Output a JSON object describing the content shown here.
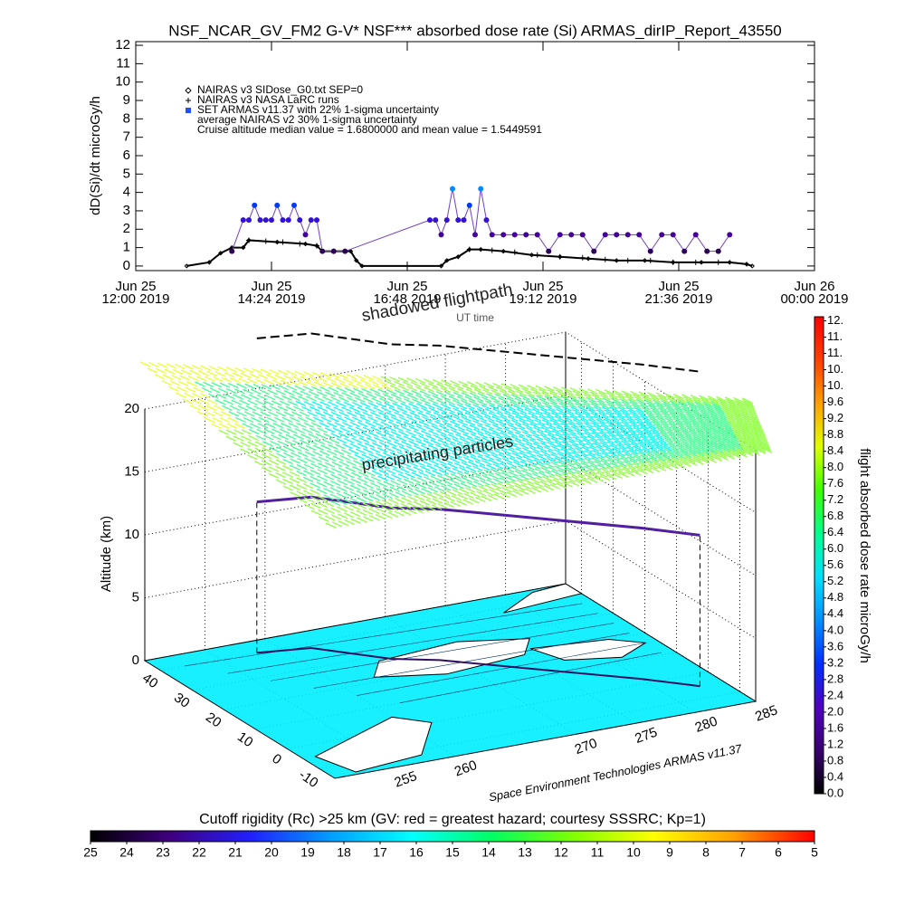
{
  "chart_data": [
    {
      "type": "line",
      "title": "NSF_NCAR_GV_FM2 G-V* NSF*** absorbed dose rate (Si) ARMAS_dirIP_Report_43550",
      "xlabel": "UT time",
      "ylabel": "dD(Si)/dt microGy/h",
      "xlim": [
        12,
        24
      ],
      "xticks": [
        {
          "value": 12,
          "label": "Jun 25\n12:00 2019"
        },
        {
          "value": 14.4,
          "label": "Jun 25\n14:24 2019"
        },
        {
          "value": 16.8,
          "label": "Jun 25\n16:48 2019"
        },
        {
          "value": 19.2,
          "label": "Jun 25\n19:12 2019"
        },
        {
          "value": 21.6,
          "label": "Jun 25\n21:36 2019"
        },
        {
          "value": 24,
          "label": "Jun 26\n00:00 2019"
        }
      ],
      "ylim": [
        -0.25,
        12.2
      ],
      "yticks": [
        0,
        1,
        2,
        3,
        4,
        5,
        6,
        7,
        8,
        9,
        10,
        11,
        12
      ],
      "series": [
        {
          "name": "NAIRAS v3 SIDose_G0.txt SEP=0",
          "color": "#000000",
          "marker": "diamond",
          "x": [
            12.9,
            13.3,
            13.5,
            13.7,
            13.9,
            14.0,
            14.5,
            15.0,
            15.2,
            15.3,
            15.8,
            15.9,
            16.0,
            17.4,
            17.5,
            17.7,
            17.9,
            18.1,
            18.5,
            19.0,
            19.5,
            20.0,
            20.5,
            21.0,
            21.5,
            22.0,
            22.5,
            22.8,
            22.9
          ],
          "values": [
            0,
            0.2,
            0.7,
            1.0,
            1.0,
            1.4,
            1.3,
            1.2,
            1.1,
            0.8,
            0.8,
            0.3,
            0,
            0,
            0.3,
            0.5,
            0.9,
            0.9,
            0.8,
            0.6,
            0.5,
            0.4,
            0.3,
            0.3,
            0.2,
            0.2,
            0.2,
            0.1,
            0
          ]
        },
        {
          "name": "NAIRAS v3 NASA LaRC runs",
          "color": "#000000",
          "marker": "plus",
          "x": [
            14.0,
            14.3,
            14.6,
            14.9,
            15.2,
            15.5,
            17.9,
            18.3,
            18.7,
            19.1,
            19.5,
            19.9,
            20.3,
            20.7,
            21.1,
            21.5,
            21.9,
            22.3
          ],
          "values": [
            1.4,
            1.35,
            1.3,
            1.2,
            1.1,
            0.8,
            0.9,
            0.85,
            0.75,
            0.6,
            0.5,
            0.45,
            0.35,
            0.3,
            0.3,
            0.2,
            0.2,
            0.2
          ]
        },
        {
          "name": "SET ARMAS v11.37 with 22% 1-sigma uncertainty",
          "color": "#2050ff",
          "marker": "circle",
          "x": [
            13.7,
            13.9,
            14.0,
            14.1,
            14.2,
            14.3,
            14.4,
            14.5,
            14.6,
            14.7,
            14.8,
            14.9,
            15.0,
            15.1,
            15.2,
            15.3,
            15.5,
            15.7,
            17.2,
            17.3,
            17.4,
            17.5,
            17.6,
            17.7,
            17.8,
            17.9,
            18.0,
            18.1,
            18.2,
            18.3,
            18.5,
            18.7,
            18.9,
            19.1,
            19.3,
            19.5,
            19.7,
            19.9,
            20.1,
            20.3,
            20.5,
            20.7,
            20.9,
            21.1,
            21.3,
            21.5,
            21.7,
            21.9,
            22.1,
            22.3,
            22.5
          ],
          "values": [
            0.8,
            2.5,
            2.5,
            3.3,
            2.5,
            2.5,
            2.5,
            3.3,
            2.5,
            2.5,
            3.3,
            2.5,
            1.7,
            2.5,
            2.5,
            0.8,
            0.8,
            0.8,
            2.5,
            2.5,
            1.7,
            2.5,
            4.2,
            2.5,
            2.5,
            3.3,
            1.7,
            4.2,
            2.5,
            1.7,
            1.7,
            1.7,
            1.7,
            1.7,
            0.8,
            1.7,
            1.7,
            1.7,
            0.8,
            1.7,
            1.7,
            1.7,
            1.7,
            0.8,
            1.7,
            1.7,
            0.8,
            1.7,
            0.8,
            0.8,
            1.7
          ]
        }
      ],
      "annotations": [
        "average NAIRAS v2 30% 1-sigma uncertainty",
        "Cruise altitude median value = 1.6800000 and mean value = 1.5449591"
      ]
    },
    {
      "type": "3d",
      "zlabel": "Altitude (km)",
      "zlim": [
        0,
        25
      ],
      "zticks": [
        0,
        5,
        10,
        15,
        20
      ],
      "xlim": [
        45,
        -15
      ],
      "xticks": [
        40,
        30,
        20,
        10,
        0,
        -10
      ],
      "ylim": [
        250,
        285
      ],
      "yticks": [
        255,
        260,
        270,
        275,
        280,
        285
      ],
      "annotations": [
        "shadowed flightpath",
        "precipitating particles"
      ],
      "credit": "Space Environment Technologies ARMAS v11.37",
      "flightpath": {
        "lat": [
          40,
          38,
          33,
          28,
          24,
          18,
          10,
          2,
          -5
        ],
        "lon": [
          258,
          262,
          264,
          266,
          269,
          272,
          276,
          280,
          283
        ],
        "alt": [
          12,
          12,
          12,
          12,
          12,
          12,
          12,
          12,
          12
        ]
      }
    },
    {
      "type": "colorbar",
      "label": "flight absorbed dose rate microGy/h",
      "lim": [
        0,
        11.7
      ],
      "ticks": [
        {
          "value": 0,
          "label": "0.0"
        },
        0.4,
        0.8,
        1.2,
        1.6,
        {
          "value": 2,
          "label": "2.0"
        },
        2.4,
        2.8,
        3.2,
        3.6,
        {
          "value": 4,
          "label": "4.0"
        },
        4.4,
        4.8,
        5.2,
        5.6,
        {
          "value": 6,
          "label": "6.0"
        },
        6.4,
        6.8,
        7.2,
        7.6,
        {
          "value": 8,
          "label": "8.0"
        },
        8.4,
        8.8,
        9.2,
        9.6,
        {
          "value": 10,
          "label": "10."
        },
        {
          "value": 10.4,
          "label": "10."
        },
        {
          "value": 10.8,
          "label": "11."
        },
        {
          "value": 11.2,
          "label": "11."
        },
        {
          "value": 11.6,
          "label": "12."
        }
      ],
      "colors": [
        "#000000",
        "#3a0070",
        "#5000c0",
        "#0030ff",
        "#0090ff",
        "#00e0ff",
        "#00ff90",
        "#40ff00",
        "#e0ff00",
        "#ffa000",
        "#ff4000",
        "#ff0000"
      ]
    },
    {
      "type": "colorbar",
      "title": "Cutoff rigidity (Rc) >25 km (GV: red = greatest hazard; courtesy SSSRC; Kp=1)",
      "lim": [
        25,
        5
      ],
      "ticks": [
        25,
        24,
        23,
        22,
        21,
        20,
        19,
        18,
        17,
        16,
        15,
        14,
        13,
        12,
        11,
        10,
        9,
        8,
        7,
        6,
        5
      ],
      "colors": [
        "#000000",
        "#400080",
        "#2020ff",
        "#00a0ff",
        "#00ffff",
        "#00ff60",
        "#80ff00",
        "#ffff00",
        "#ffa000",
        "#ff0000"
      ]
    }
  ]
}
